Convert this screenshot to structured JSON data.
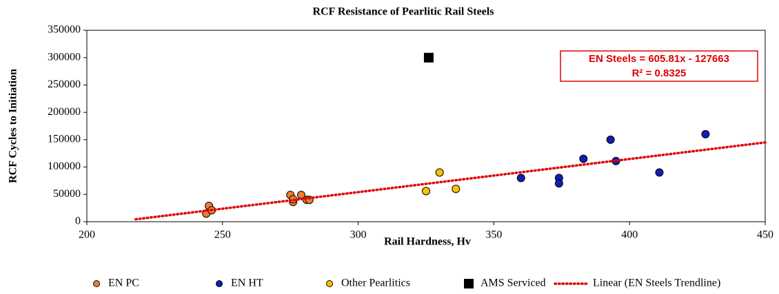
{
  "chart_data": {
    "type": "scatter",
    "title": "RCF Resistance of Pearlitic Rail Steels",
    "xlabel": "Rail Hardness,  Hv",
    "ylabel": "RCF  Cycles to Initiation",
    "xlim": [
      200,
      450
    ],
    "xticks": [
      200,
      250,
      300,
      350,
      400,
      450
    ],
    "ylim": [
      0,
      350000
    ],
    "yticks": [
      0,
      50000,
      100000,
      150000,
      200000,
      250000,
      300000,
      350000
    ],
    "grid": false,
    "legend": "bottom",
    "annotation": [
      "EN Steels = 605.81x - 127663",
      "R² = 0.8325"
    ],
    "series": [
      {
        "name": "EN PC",
        "color": "#ed7d31",
        "marker": "circle",
        "x": [
          244,
          245,
          246,
          275,
          276,
          276,
          279,
          281,
          282
        ],
        "values": [
          15000,
          29000,
          21000,
          49000,
          36000,
          41000,
          49000,
          40000,
          40000
        ]
      },
      {
        "name": "EN HT",
        "color": "#0f1fb5",
        "marker": "circle",
        "x": [
          360,
          374,
          374,
          383,
          393,
          395,
          411,
          428
        ],
        "values": [
          80000,
          80000,
          70000,
          115000,
          150000,
          111000,
          90000,
          160000
        ]
      },
      {
        "name": "Other Pearlitics",
        "color": "#ffc000",
        "marker": "circle",
        "x": [
          325,
          330,
          336
        ],
        "values": [
          56000,
          90000,
          60000
        ]
      },
      {
        "name": "AMS Serviced",
        "color": "#000000",
        "marker": "square",
        "x": [
          326
        ],
        "values": [
          300000
        ]
      },
      {
        "name": "Linear (EN Steels Trendline)",
        "color": "#e00000",
        "marker": "dotted-line",
        "x": [
          218,
          450
        ],
        "values": [
          4404,
          144952
        ]
      }
    ]
  }
}
